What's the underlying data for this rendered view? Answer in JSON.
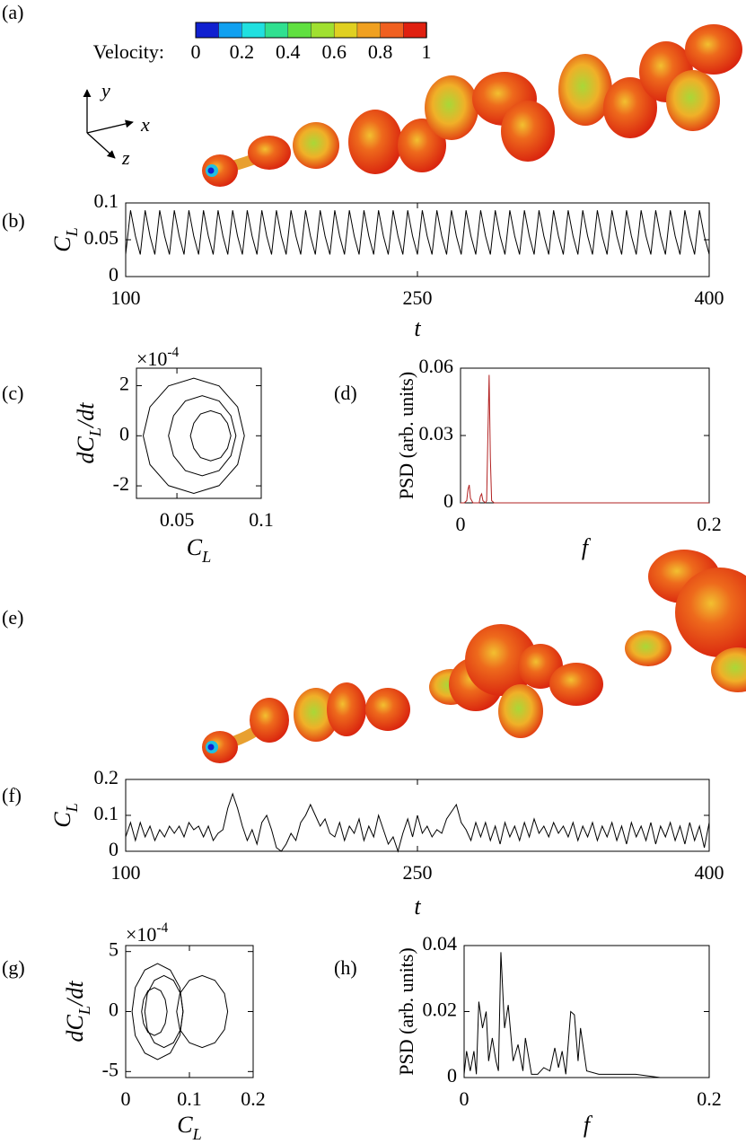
{
  "chart_data": [
    {
      "type": "render",
      "panel": "(a)",
      "colorbar": {
        "label": "Velocity:",
        "lim": [
          0,
          1
        ],
        "ticks": [
          0,
          0.2,
          0.4,
          0.6,
          0.8,
          1
        ],
        "colors": [
          "#1020d0",
          "#10a0f0",
          "#20e0e0",
          "#30e090",
          "#60e040",
          "#a0e030",
          "#e0d020",
          "#f0a020",
          "#f06020",
          "#e02010"
        ]
      },
      "axis_labels": {
        "y": "y",
        "x": "x",
        "z": "z"
      }
    },
    {
      "type": "line",
      "panel": "(b)",
      "xlabel": "t",
      "ylabel": "C_L",
      "color": "#000000",
      "xlim": [
        100,
        400
      ],
      "ylim": [
        0,
        0.1
      ],
      "xticks": [
        100,
        250,
        400
      ],
      "yticks": [
        0,
        0.05,
        0.1
      ],
      "x": [
        100,
        102.5,
        105,
        107.5,
        110,
        112.5,
        115,
        117.5,
        120,
        122.5,
        125,
        127.5,
        130,
        132.5,
        135,
        137.5,
        140,
        142.5,
        145,
        147.5,
        150,
        152.5,
        155,
        157.5,
        160,
        162.5,
        165,
        167.5,
        170,
        172.5,
        175,
        177.5,
        180,
        182.5,
        185,
        187.5,
        190,
        192.5,
        195,
        197.5,
        200,
        202.5,
        205,
        207.5,
        210,
        212.5,
        215,
        217.5,
        220,
        222.5,
        225,
        227.5,
        230,
        232.5,
        235,
        237.5,
        240,
        242.5,
        245,
        247.5,
        250,
        252.5,
        255,
        257.5,
        260,
        262.5,
        265,
        267.5,
        270,
        272.5,
        275,
        277.5,
        280,
        282.5,
        285,
        287.5,
        290,
        292.5,
        295,
        297.5,
        300,
        302.5,
        305,
        307.5,
        310,
        312.5,
        315,
        317.5,
        320,
        322.5,
        325,
        327.5,
        330,
        332.5,
        335,
        337.5,
        340,
        342.5,
        345,
        347.5,
        350,
        352.5,
        355,
        357.5,
        360,
        362.5,
        365,
        367.5,
        370,
        372.5,
        375,
        377.5,
        380,
        382.5,
        385,
        387.5,
        390,
        392.5,
        395,
        397.5,
        400
      ],
      "values": [
        0.03,
        0.09,
        0.055,
        0.03,
        0.09,
        0.055,
        0.03,
        0.09,
        0.055,
        0.03,
        0.09,
        0.055,
        0.03,
        0.09,
        0.055,
        0.03,
        0.09,
        0.055,
        0.03,
        0.09,
        0.055,
        0.03,
        0.09,
        0.055,
        0.03,
        0.09,
        0.055,
        0.03,
        0.09,
        0.055,
        0.03,
        0.09,
        0.055,
        0.03,
        0.09,
        0.055,
        0.03,
        0.09,
        0.055,
        0.03,
        0.09,
        0.055,
        0.03,
        0.09,
        0.055,
        0.03,
        0.09,
        0.055,
        0.03,
        0.09,
        0.055,
        0.03,
        0.09,
        0.055,
        0.03,
        0.09,
        0.055,
        0.03,
        0.09,
        0.055,
        0.03,
        0.09,
        0.055,
        0.03,
        0.09,
        0.055,
        0.03,
        0.09,
        0.055,
        0.03,
        0.09,
        0.055,
        0.03,
        0.09,
        0.055,
        0.03,
        0.09,
        0.055,
        0.03,
        0.09,
        0.055,
        0.03,
        0.09,
        0.055,
        0.03,
        0.09,
        0.055,
        0.03,
        0.09,
        0.055,
        0.03,
        0.09,
        0.055,
        0.03,
        0.09,
        0.055,
        0.03,
        0.09,
        0.055,
        0.03,
        0.09,
        0.055,
        0.03,
        0.09,
        0.055,
        0.03,
        0.09,
        0.055,
        0.03,
        0.09,
        0.055,
        0.03,
        0.09,
        0.055,
        0.03,
        0.09,
        0.055,
        0.03,
        0.09,
        0.055,
        0.03
      ]
    },
    {
      "type": "phase",
      "panel": "(c)",
      "xlabel": "C_L",
      "ylabel": "dC_L/dt",
      "y_multiplier": "×10^{-4}",
      "xlim": [
        0.026,
        0.1
      ],
      "ylim": [
        -2.5,
        2.7
      ],
      "xticks": [
        0.05,
        0.1
      ],
      "yticks": [
        -2,
        0,
        2
      ],
      "series": [
        {
          "color": "#000000",
          "x": [
            0.09,
            0.086,
            0.075,
            0.06,
            0.045,
            0.034,
            0.03,
            0.034,
            0.045,
            0.06,
            0.075,
            0.086
          ],
          "values": [
            0,
            1.15,
            1.99,
            2.3,
            1.99,
            1.15,
            0,
            -1.15,
            -1.99,
            -2.3,
            -1.99,
            -1.15
          ]
        },
        {
          "color": "#000000",
          "x": [
            0.085,
            0.082,
            0.075,
            0.065,
            0.055,
            0.048,
            0.045,
            0.048,
            0.055,
            0.065,
            0.075,
            0.082
          ],
          "values": [
            0,
            0.8,
            1.39,
            1.6,
            1.39,
            0.8,
            0,
            -0.8,
            -1.39,
            -1.6,
            -1.39,
            -0.8
          ]
        },
        {
          "color": "#000000",
          "x": [
            0.082,
            0.08,
            0.076,
            0.07,
            0.064,
            0.06,
            0.058,
            0.06,
            0.064,
            0.07,
            0.076,
            0.08
          ],
          "values": [
            0,
            0.5,
            0.87,
            1,
            0.87,
            0.5,
            0,
            -0.5,
            -0.87,
            -1,
            -0.87,
            -0.5
          ]
        }
      ]
    },
    {
      "type": "line",
      "panel": "(d)",
      "xlabel": "f",
      "ylabel": "PSD (arb. units)",
      "color": "#b22222",
      "xlim": [
        0,
        0.2
      ],
      "ylim": [
        0,
        0.06
      ],
      "xticks": [
        0,
        0.2
      ],
      "yticks": [
        0,
        0.03,
        0.06
      ],
      "x": [
        0,
        0.003,
        0.005,
        0.006,
        0.007,
        0.008,
        0.01,
        0.015,
        0.016,
        0.017,
        0.018,
        0.02,
        0.021,
        0.022,
        0.023,
        0.024,
        0.025,
        0.027,
        0.03,
        0.05,
        0.1,
        0.15,
        0.2
      ],
      "values": [
        0,
        0,
        0.001,
        0.006,
        0.008,
        0.002,
        0,
        0,
        0.003,
        0.004,
        0.001,
        0,
        0.001,
        0.03,
        0.057,
        0.02,
        0.001,
        0,
        0,
        0,
        0,
        0,
        0
      ]
    },
    {
      "type": "render",
      "panel": "(e)"
    },
    {
      "type": "line",
      "panel": "(f)",
      "xlabel": "t",
      "ylabel": "C_L",
      "color": "#000000",
      "xlim": [
        100,
        400
      ],
      "ylim": [
        0,
        0.2
      ],
      "xticks": [
        100,
        250,
        400
      ],
      "yticks": [
        0,
        0.1,
        0.2
      ],
      "x": [
        100,
        102.5,
        105,
        107.5,
        110,
        112.5,
        115,
        117.5,
        120,
        122.5,
        125,
        127.5,
        130,
        132.5,
        135,
        137.5,
        140,
        142.5,
        145,
        147.5,
        150,
        152.5,
        155,
        157.5,
        160,
        162.5,
        165,
        167.5,
        170,
        172.5,
        175,
        177.5,
        180,
        182.5,
        185,
        187.5,
        190,
        192.5,
        195,
        197.5,
        200,
        202.5,
        205,
        207.5,
        210,
        212.5,
        215,
        217.5,
        220,
        222.5,
        225,
        227.5,
        230,
        232.5,
        235,
        237.5,
        240,
        242.5,
        245,
        247.5,
        250,
        252.5,
        255,
        257.5,
        260,
        262.5,
        265,
        267.5,
        270,
        272.5,
        275,
        277.5,
        280,
        282.5,
        285,
        287.5,
        290,
        292.5,
        295,
        297.5,
        300,
        302.5,
        305,
        307.5,
        310,
        312.5,
        315,
        317.5,
        320,
        322.5,
        325,
        327.5,
        330,
        332.5,
        335,
        337.5,
        340,
        342.5,
        345,
        347.5,
        350,
        352.5,
        355,
        357.5,
        360,
        362.5,
        365,
        367.5,
        370,
        372.5,
        375,
        377.5,
        380,
        382.5,
        385,
        387.5,
        390,
        392.5,
        395,
        397.5,
        400
      ],
      "values": [
        0.04,
        0.08,
        0.03,
        0.08,
        0.04,
        0.07,
        0.03,
        0.06,
        0.04,
        0.07,
        0.05,
        0.07,
        0.04,
        0.08,
        0.06,
        0.07,
        0.04,
        0.07,
        0.03,
        0.05,
        0.06,
        0.12,
        0.16,
        0.12,
        0.07,
        0.03,
        0.06,
        0.02,
        0.08,
        0.1,
        0.06,
        0.01,
        0,
        0.02,
        0.05,
        0.03,
        0.08,
        0.1,
        0.13,
        0.1,
        0.07,
        0.09,
        0.05,
        0.04,
        0.08,
        0.03,
        0.07,
        0.05,
        0.09,
        0.03,
        0.07,
        0.04,
        0.1,
        0.06,
        0.02,
        0.04,
        0,
        0.05,
        0.09,
        0.04,
        0.1,
        0.05,
        0.07,
        0.04,
        0.06,
        0.05,
        0.09,
        0.11,
        0.13,
        0.08,
        0.06,
        0.03,
        0.08,
        0.04,
        0.08,
        0.03,
        0.07,
        0.02,
        0.08,
        0.04,
        0.07,
        0.03,
        0.08,
        0.04,
        0.09,
        0.05,
        0.07,
        0.04,
        0.08,
        0.05,
        0.07,
        0.04,
        0.08,
        0.03,
        0.07,
        0.04,
        0.08,
        0.03,
        0.07,
        0.04,
        0.08,
        0.03,
        0.07,
        0.02,
        0.08,
        0.04,
        0.07,
        0.03,
        0.08,
        0.02,
        0.07,
        0.04,
        0.08,
        0.03,
        0.07,
        0.02,
        0.08,
        0.03,
        0.07,
        0.01,
        0.08
      ]
    },
    {
      "type": "phase",
      "panel": "(g)",
      "xlabel": "C_L",
      "ylabel": "dC_L/dt",
      "y_multiplier": "×10^{-4}",
      "xlim": [
        0,
        0.2
      ],
      "ylim": [
        -5.5,
        5.5
      ],
      "xticks": [
        0,
        0.1,
        0.2
      ],
      "yticks": [
        -5,
        0,
        5
      ],
      "series": [
        {
          "color": "#000000",
          "x": [
            0.09,
            0.085,
            0.07,
            0.05,
            0.03,
            0.015,
            0.01,
            0.015,
            0.03,
            0.05,
            0.07,
            0.085
          ],
          "values": [
            0,
            2,
            3.46,
            4,
            3.46,
            2,
            0,
            -2,
            -3.46,
            -4,
            -3.46,
            -2
          ]
        },
        {
          "color": "#000000",
          "x": [
            0.09,
            0.086,
            0.075,
            0.06,
            0.045,
            0.034,
            0.03,
            0.034,
            0.045,
            0.06,
            0.075,
            0.086
          ],
          "values": [
            0,
            1.5,
            2.6,
            3,
            2.6,
            1.5,
            0,
            -1.5,
            -2.6,
            -3,
            -2.6,
            -1.5
          ]
        },
        {
          "color": "#000000",
          "x": [
            0.065,
            0.062,
            0.055,
            0.045,
            0.035,
            0.028,
            0.025,
            0.028,
            0.035,
            0.045,
            0.055,
            0.062
          ],
          "values": [
            0,
            1,
            1.73,
            2,
            1.73,
            1,
            0,
            -1,
            -1.73,
            -2,
            -1.73,
            -1
          ]
        },
        {
          "color": "#000000",
          "x": [
            0.16,
            0.155,
            0.14,
            0.12,
            0.1,
            0.085,
            0.08,
            0.085,
            0.1,
            0.12,
            0.14,
            0.155
          ],
          "values": [
            0,
            1.5,
            2.6,
            3,
            2.6,
            1.5,
            0,
            -1.5,
            -2.6,
            -3,
            -2.6,
            -1.5
          ]
        }
      ]
    },
    {
      "type": "line",
      "panel": "(h)",
      "xlabel": "f",
      "ylabel": "PSD (arb. units)",
      "color": "#000000",
      "xlim": [
        0,
        0.2
      ],
      "ylim": [
        0,
        0.04
      ],
      "xticks": [
        0,
        0.2
      ],
      "yticks": [
        0,
        0.02,
        0.04
      ],
      "x": [
        0,
        0.002,
        0.005,
        0.008,
        0.01,
        0.012,
        0.015,
        0.018,
        0.02,
        0.023,
        0.026,
        0.028,
        0.03,
        0.033,
        0.036,
        0.04,
        0.044,
        0.048,
        0.05,
        0.055,
        0.06,
        0.065,
        0.07,
        0.074,
        0.077,
        0.08,
        0.083,
        0.087,
        0.09,
        0.093,
        0.095,
        0.1,
        0.11,
        0.13,
        0.14,
        0.16,
        0.2
      ],
      "values": [
        0.001,
        0.008,
        0.002,
        0.008,
        0.001,
        0.023,
        0.015,
        0.02,
        0.005,
        0.012,
        0.005,
        0.002,
        0.038,
        0.015,
        0.022,
        0.005,
        0.01,
        0.002,
        0.012,
        0.001,
        0.001,
        0.003,
        0.002,
        0.009,
        0.003,
        0.008,
        0.001,
        0.02,
        0.019,
        0.005,
        0.015,
        0.002,
        0.001,
        0.001,
        0.001,
        0,
        0
      ]
    }
  ]
}
